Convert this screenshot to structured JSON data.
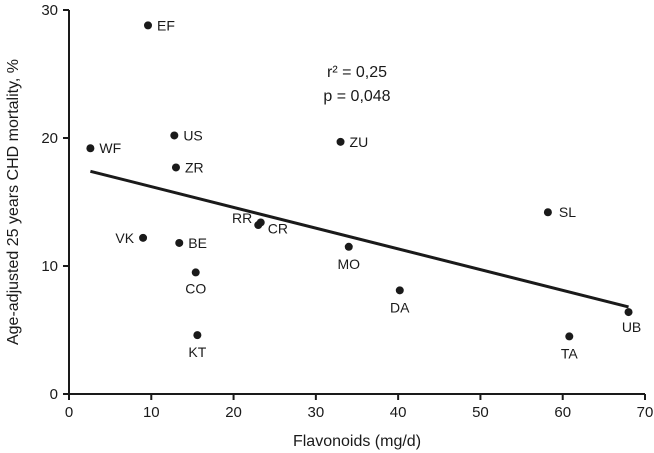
{
  "chart_data": {
    "type": "scatter",
    "title": "",
    "xlabel": "Flavonoids (mg/d)",
    "ylabel": "Age-adjusted 25 years CHD mortality, %",
    "xlim": [
      0,
      70
    ],
    "ylim": [
      0,
      30
    ],
    "x_ticks": [
      "0",
      "10",
      "20",
      "30",
      "40",
      "50",
      "60",
      "70"
    ],
    "y_ticks": [
      "0",
      "10",
      "20",
      "30"
    ],
    "grid": false,
    "points": [
      {
        "label": "EF",
        "x": 9.6,
        "y": 28.8
      },
      {
        "label": "WF",
        "x": 2.6,
        "y": 19.2
      },
      {
        "label": "US",
        "x": 12.8,
        "y": 20.2
      },
      {
        "label": "ZU",
        "x": 33.0,
        "y": 19.7
      },
      {
        "label": "ZR",
        "x": 13.0,
        "y": 17.7
      },
      {
        "label": "SL",
        "x": 58.2,
        "y": 14.2
      },
      {
        "label": "RR",
        "x": 23.0,
        "y": 13.2
      },
      {
        "label": "CR",
        "x": 23.3,
        "y": 13.4
      },
      {
        "label": "VK",
        "x": 9.0,
        "y": 12.2
      },
      {
        "label": "BE",
        "x": 13.4,
        "y": 11.8
      },
      {
        "label": "MO",
        "x": 34.0,
        "y": 11.5
      },
      {
        "label": "CO",
        "x": 15.4,
        "y": 9.5
      },
      {
        "label": "DA",
        "x": 40.2,
        "y": 8.1
      },
      {
        "label": "UB",
        "x": 68.0,
        "y": 6.4
      },
      {
        "label": "KT",
        "x": 15.6,
        "y": 4.6
      },
      {
        "label": "TA",
        "x": 60.8,
        "y": 4.5
      }
    ],
    "regression_line": {
      "x": [
        2.6,
        68.0
      ],
      "y": [
        17.4,
        6.8
      ]
    },
    "annotations": {
      "r2": "r² = 0,25",
      "p": "p = 0,048"
    }
  }
}
